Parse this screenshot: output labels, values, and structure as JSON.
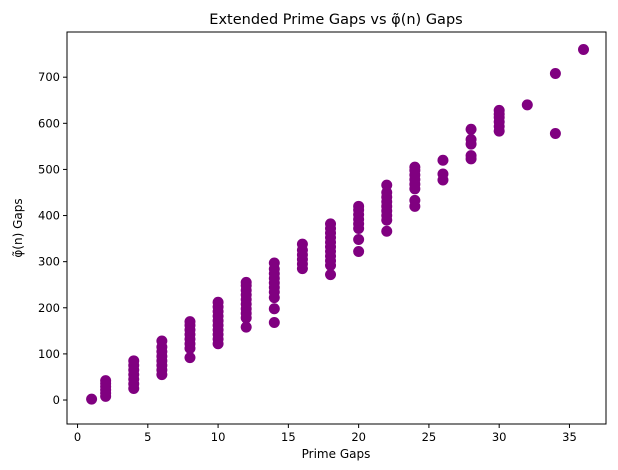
{
  "chart_data": {
    "type": "scatter",
    "title": "Extended Prime Gaps vs φ̃(n) Gaps",
    "xlabel": "Prime Gaps",
    "ylabel": "φ̃(n) Gaps",
    "xlim": [
      -0.75,
      37.6
    ],
    "ylim": [
      -52,
      798
    ],
    "xticks": [
      0,
      5,
      10,
      15,
      20,
      25,
      30,
      35
    ],
    "yticks": [
      0,
      100,
      200,
      300,
      400,
      500,
      600,
      700
    ],
    "grid": false,
    "marker_color": "#800080",
    "points": [
      {
        "x": 1,
        "y": [
          2
        ]
      },
      {
        "x": 2,
        "y": [
          8,
          15,
          22,
          29,
          36,
          42
        ]
      },
      {
        "x": 4,
        "y": [
          25,
          35,
          45,
          55,
          65,
          75,
          85
        ]
      },
      {
        "x": 6,
        "y": [
          55,
          65,
          75,
          85,
          95,
          105,
          115,
          128
        ]
      },
      {
        "x": 8,
        "y": [
          92,
          112,
          122,
          132,
          142,
          152,
          162,
          170
        ]
      },
      {
        "x": 10,
        "y": [
          122,
          132,
          142,
          152,
          162,
          172,
          182,
          192,
          202,
          212
        ]
      },
      {
        "x": 12,
        "y": [
          158,
          178,
          188,
          198,
          208,
          218,
          228,
          238,
          248,
          255
        ]
      },
      {
        "x": 14,
        "y": [
          168,
          198,
          222,
          234,
          244,
          254,
          264,
          274,
          284,
          297
        ]
      },
      {
        "x": 16,
        "y": [
          285,
          295,
          305,
          315,
          325,
          338
        ]
      },
      {
        "x": 18,
        "y": [
          272,
          292,
          302,
          312,
          322,
          332,
          342,
          352,
          362,
          372,
          382
        ]
      },
      {
        "x": 20,
        "y": [
          322,
          348,
          372,
          382,
          392,
          402,
          412,
          420
        ]
      },
      {
        "x": 22,
        "y": [
          366,
          390,
          400,
          410,
          420,
          430,
          440,
          450,
          466
        ]
      },
      {
        "x": 24,
        "y": [
          420,
          433,
          458,
          468,
          478,
          488,
          498,
          505
        ]
      },
      {
        "x": 26,
        "y": [
          477,
          490,
          520
        ]
      },
      {
        "x": 28,
        "y": [
          523,
          530,
          555,
          565,
          587
        ]
      },
      {
        "x": 30,
        "y": [
          583,
          593,
          603,
          613,
          620,
          628
        ]
      },
      {
        "x": 32,
        "y": [
          640
        ]
      },
      {
        "x": 34,
        "y": [
          578,
          708
        ]
      },
      {
        "x": 36,
        "y": [
          760
        ]
      }
    ]
  }
}
